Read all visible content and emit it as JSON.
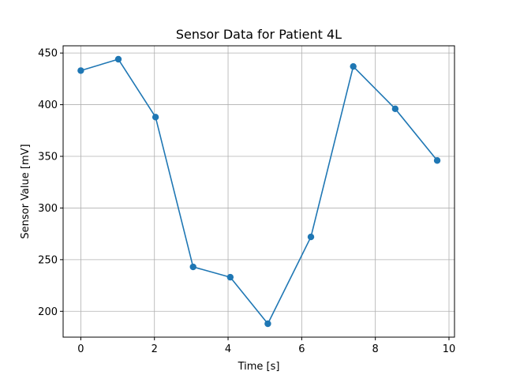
{
  "chart_data": {
    "type": "line",
    "title": "Sensor Data for Patient 4L",
    "xlabel": "Time [s]",
    "ylabel": "Sensor Value [mV]",
    "xlim": [
      -0.48,
      10.15
    ],
    "ylim": [
      175,
      457
    ],
    "xticks": [
      0,
      2,
      4,
      6,
      8,
      10
    ],
    "yticks": [
      200,
      250,
      300,
      350,
      400,
      450
    ],
    "grid": true,
    "legend": "none",
    "series": [
      {
        "color": "#1f77b4",
        "marker": "circle",
        "points": [
          {
            "x": 0.0,
            "y": 433
          },
          {
            "x": 1.02,
            "y": 444
          },
          {
            "x": 2.03,
            "y": 388
          },
          {
            "x": 3.05,
            "y": 243
          },
          {
            "x": 4.06,
            "y": 233
          },
          {
            "x": 5.08,
            "y": 188
          },
          {
            "x": 6.25,
            "y": 272
          },
          {
            "x": 7.4,
            "y": 437
          },
          {
            "x": 8.54,
            "y": 396
          },
          {
            "x": 9.68,
            "y": 346
          }
        ]
      }
    ]
  }
}
